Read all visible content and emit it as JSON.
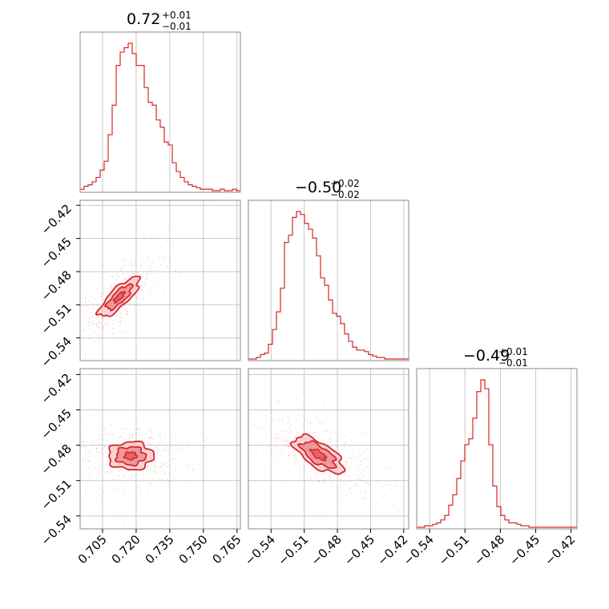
{
  "chart_data": {
    "type": "corner",
    "color": "#d62728",
    "fill_color": "#f7c6c8",
    "grid": true,
    "parameters": [
      {
        "title": {
          "median": "0.72",
          "plus": "+0.01",
          "minus": "−0.01"
        },
        "range": [
          0.695,
          0.7665
        ],
        "ticks": [
          {
            "v": 0.705,
            "label": "0.705"
          },
          {
            "v": 0.72,
            "label": "0.720"
          },
          {
            "v": 0.735,
            "label": "0.735"
          },
          {
            "v": 0.75,
            "label": "0.750"
          },
          {
            "v": 0.765,
            "label": "0.765"
          }
        ],
        "hist": [
          0.01,
          0.03,
          0.04,
          0.06,
          0.09,
          0.14,
          0.2,
          0.38,
          0.58,
          0.85,
          0.94,
          0.97,
          1.0,
          0.93,
          0.85,
          0.85,
          0.7,
          0.6,
          0.58,
          0.48,
          0.43,
          0.33,
          0.31,
          0.19,
          0.13,
          0.09,
          0.06,
          0.04,
          0.03,
          0.02,
          0.01,
          0.01,
          0.01,
          0.0,
          0.0,
          0.01,
          0.0,
          0.0,
          0.01,
          0.0
        ]
      },
      {
        "title": {
          "median": "−0.50",
          "plus": "+0.02",
          "minus": "−0.02"
        },
        "range": [
          -0.5605,
          -0.4155
        ],
        "ticks": [
          {
            "v": -0.54,
            "label": "−0.54"
          },
          {
            "v": -0.51,
            "label": "−0.51"
          },
          {
            "v": -0.48,
            "label": "−0.48"
          },
          {
            "v": -0.45,
            "label": "−0.45"
          },
          {
            "v": -0.42,
            "label": "−0.42"
          }
        ],
        "hist": [
          0.0,
          0.0,
          0.01,
          0.03,
          0.04,
          0.1,
          0.2,
          0.32,
          0.48,
          0.79,
          0.84,
          0.96,
          1.0,
          0.98,
          0.92,
          0.88,
          0.82,
          0.7,
          0.55,
          0.5,
          0.4,
          0.31,
          0.29,
          0.24,
          0.17,
          0.12,
          0.08,
          0.06,
          0.06,
          0.05,
          0.03,
          0.02,
          0.01,
          0.01,
          0.0,
          0.0,
          0.0,
          0.0,
          0.0,
          0.0
        ]
      },
      {
        "title": {
          "median": "−0.49",
          "plus": "+0.01",
          "minus": "−0.01"
        },
        "range": [
          -0.551,
          -0.415
        ],
        "ticks": [
          {
            "v": -0.54,
            "label": "−0.54"
          },
          {
            "v": -0.51,
            "label": "−0.51"
          },
          {
            "v": -0.48,
            "label": "−0.48"
          },
          {
            "v": -0.45,
            "label": "−0.45"
          },
          {
            "v": -0.42,
            "label": "−0.42"
          }
        ],
        "hist": [
          0.0,
          0.0,
          0.01,
          0.01,
          0.02,
          0.03,
          0.05,
          0.08,
          0.15,
          0.22,
          0.33,
          0.45,
          0.56,
          0.6,
          0.74,
          0.92,
          1.0,
          0.94,
          0.56,
          0.28,
          0.14,
          0.08,
          0.05,
          0.03,
          0.03,
          0.02,
          0.01,
          0.01,
          0.0,
          0.0,
          0.0,
          0.0,
          0.0,
          0.0,
          0.0,
          0.0,
          0.0,
          0.0,
          0.0,
          0.0
        ]
      }
    ],
    "pairs": [
      {
        "row": 1,
        "col": 0,
        "center": [
          0.7125,
          -0.503
        ],
        "inner": 0.0075,
        "outer": 0.012,
        "angle_deg": 44,
        "thin": 0.33
      },
      {
        "row": 2,
        "col": 0,
        "center": [
          0.7175,
          -0.489
        ],
        "inner": 0.0065,
        "outer": 0.01,
        "angle_deg": 0,
        "thin": 0.62
      },
      {
        "row": 2,
        "col": 1,
        "center": [
          -0.497,
          -0.488
        ],
        "inner": 0.018,
        "outer": 0.026,
        "angle_deg": -33,
        "thin": 0.42
      }
    ]
  }
}
